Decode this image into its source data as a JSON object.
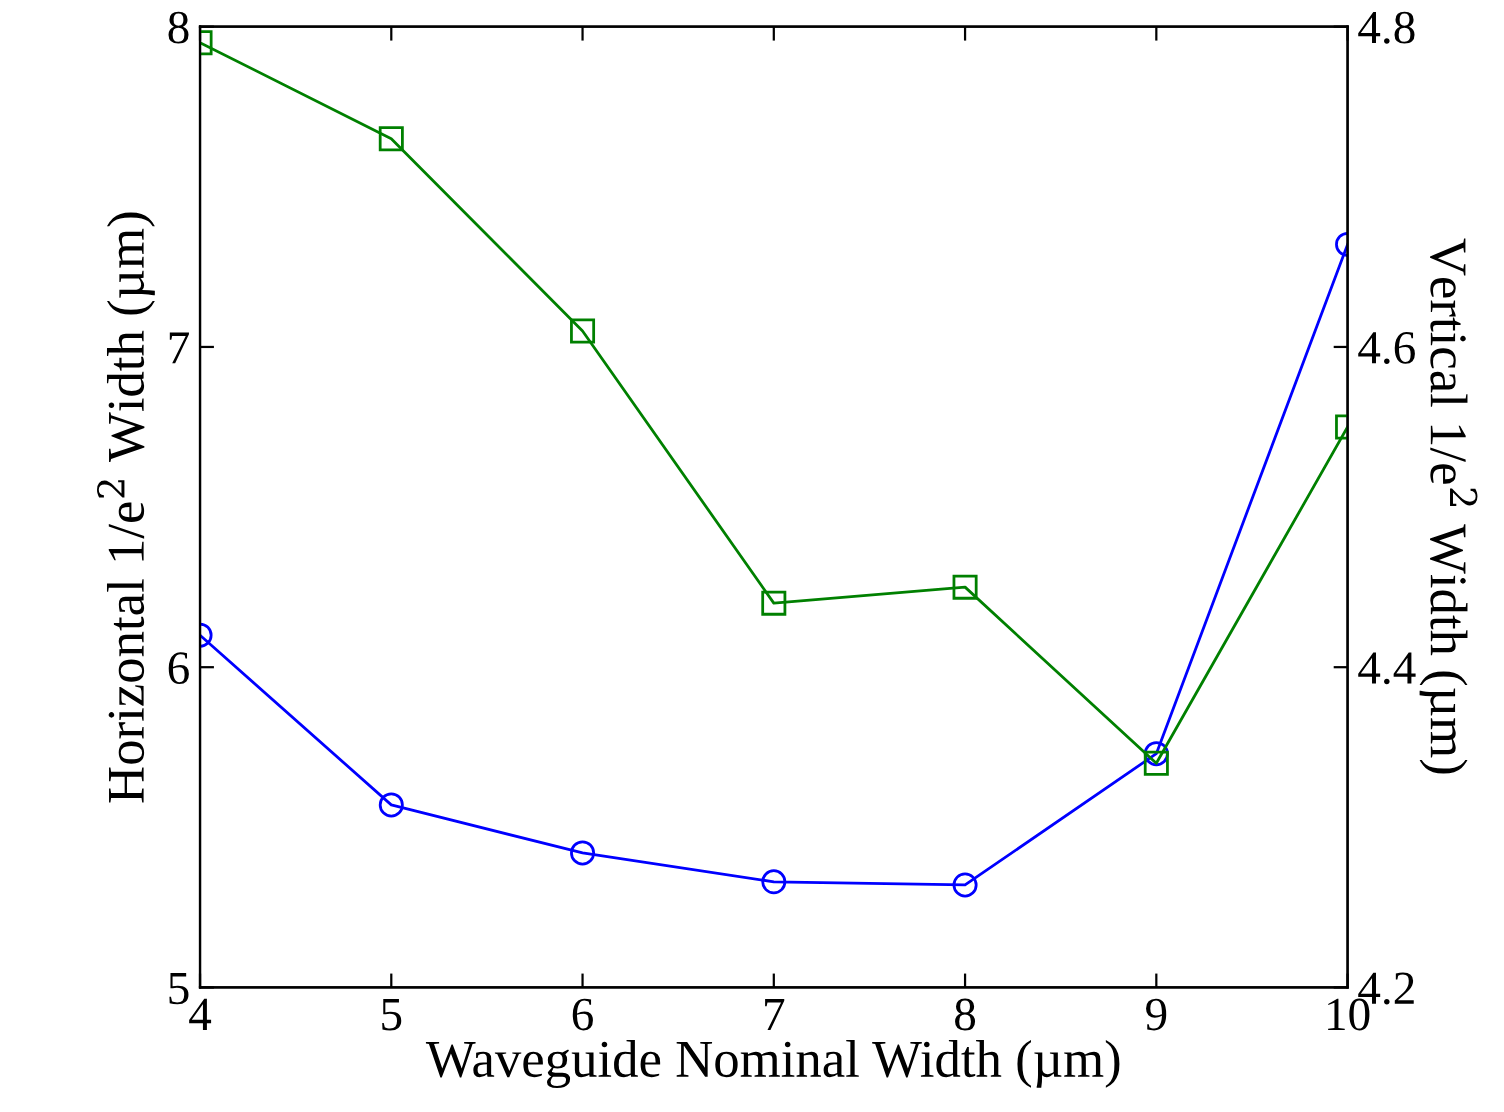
{
  "chart_data": {
    "type": "line",
    "xlabel": "Waveguide Nominal Width (µm)",
    "ylabel": "Horizontal 1/e$^{2}$ Width (µm)",
    "y2label": "Vertical 1/e$^{2}$ Width (µm)",
    "x": [
      4,
      5,
      6,
      7,
      8,
      9,
      10
    ],
    "series": [
      {
        "color": "#0000ff",
        "marker": "circle",
        "values": [
          6.1,
          5.57,
          5.42,
          5.33,
          5.32,
          5.73,
          7.32
        ]
      },
      {
        "color": "#008000",
        "marker": "square",
        "axis": "y2",
        "values": [
          4.79,
          4.73,
          4.61,
          4.44,
          4.45,
          4.34,
          4.55
        ]
      }
    ],
    "xlim": [
      4,
      10
    ],
    "xticks": [
      4,
      5,
      6,
      7,
      8,
      9,
      10
    ],
    "ylim": [
      5,
      8
    ],
    "yticks": [
      5,
      6,
      7,
      8
    ],
    "y2lim": [
      4.2,
      4.8
    ],
    "y2ticks": [
      4.2,
      4.4,
      4.6,
      4.8
    ],
    "grid": false,
    "legend": false,
    "line_style": "solid"
  }
}
